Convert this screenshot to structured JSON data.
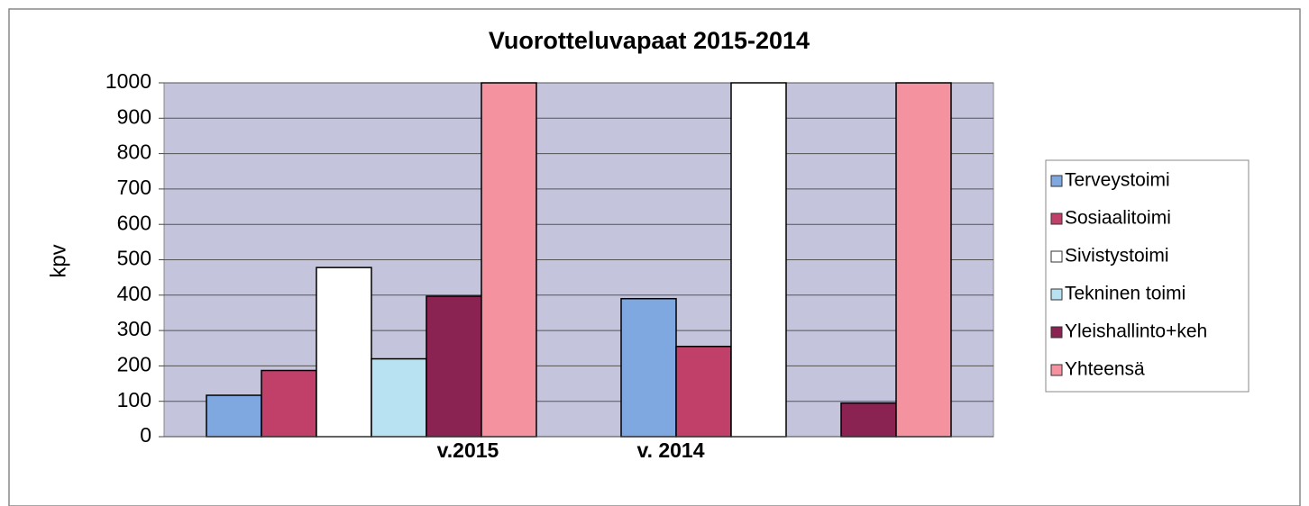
{
  "chart_data": {
    "type": "bar",
    "title": "Vuorotteluvapaat 2015-2014",
    "y_label": "kpv",
    "categories": [
      "v.2015",
      "v. 2014"
    ],
    "series": [
      {
        "name": "Terveystoimi",
        "color": "#7fa8e0",
        "values": [
          117,
          390
        ]
      },
      {
        "name": "Sosiaalitoimi",
        "color": "#c0406a",
        "values": [
          187,
          255
        ]
      },
      {
        "name": "Sivistystoimi",
        "color": "#ffffff",
        "values": [
          478,
          1000
        ]
      },
      {
        "name": "Tekninen toimi",
        "color": "#b8e2f2",
        "values": [
          220,
          null
        ]
      },
      {
        "name": "Yleishallinto+keh",
        "color": "#8a2252",
        "values": [
          397,
          95
        ]
      },
      {
        "name": "Yhteensä",
        "color": "#f4929f",
        "values": [
          1000,
          1000
        ]
      }
    ],
    "ylim": [
      0,
      1000
    ],
    "yticks": [
      0,
      100,
      200,
      300,
      400,
      500,
      600,
      700,
      800,
      900,
      1000
    ],
    "grid": true,
    "legend": "right"
  }
}
